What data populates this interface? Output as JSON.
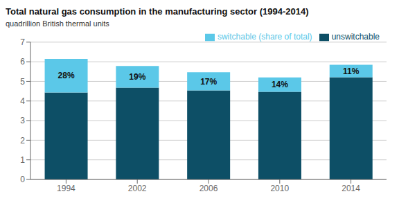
{
  "chart_data": {
    "type": "bar",
    "title": "Total natural gas consumption in the manufacturing sector (1994-2014)",
    "subtitle": "quadrillion British thermal units",
    "categories": [
      "1994",
      "2002",
      "2006",
      "2010",
      "2014"
    ],
    "series": [
      {
        "name": "unswitchable",
        "color": "#0d4f66",
        "values": [
          4.43,
          4.68,
          4.54,
          4.47,
          5.21
        ]
      },
      {
        "name": "switchable (share of total)",
        "color": "#5bc8e8",
        "values": [
          1.72,
          1.1,
          0.93,
          0.73,
          0.64
        ],
        "share_labels": [
          "28%",
          "19%",
          "17%",
          "14%",
          "11%"
        ]
      }
    ],
    "stacked": true,
    "ylim": [
      0,
      7
    ],
    "yticks": [
      0,
      1,
      2,
      3,
      4,
      5,
      6,
      7
    ],
    "grid": true,
    "legend": "upper right"
  }
}
